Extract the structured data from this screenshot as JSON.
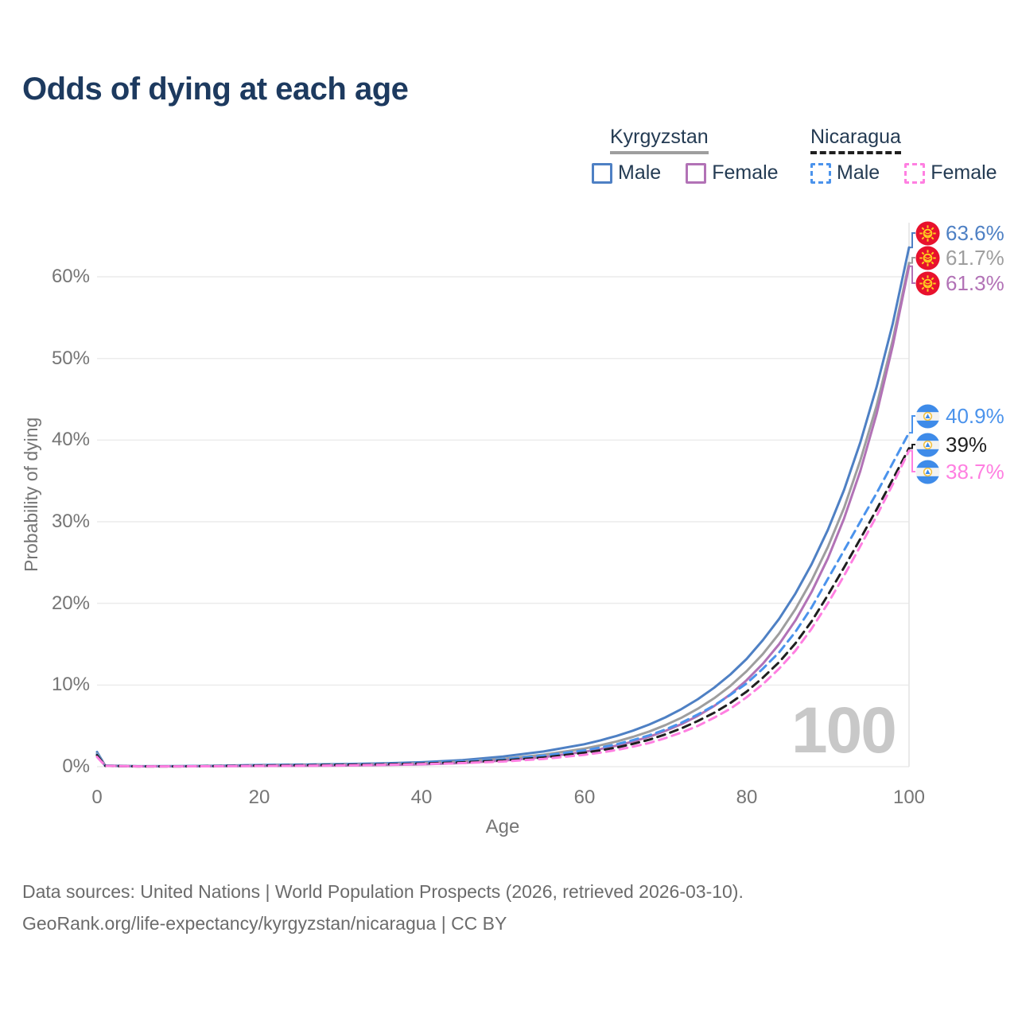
{
  "header": {
    "title": "Odds of dying at each age"
  },
  "legend": {
    "groups": [
      {
        "label": "Kyrgyzstan",
        "underline_style": "solid",
        "underline_color": "#9e9e9e",
        "items": [
          {
            "label": "Male",
            "color": "#4e80c4",
            "style": "solid"
          },
          {
            "label": "Female",
            "color": "#b272b6",
            "style": "solid"
          }
        ]
      },
      {
        "label": "Nicaragua",
        "underline_style": "dashed",
        "underline_color": "#1f1f1f",
        "items": [
          {
            "label": "Male",
            "color": "#4b93ec",
            "style": "dashed"
          },
          {
            "label": "Female",
            "color": "#ff7fe1",
            "style": "dashed"
          }
        ]
      }
    ]
  },
  "chart_data": {
    "type": "line",
    "title": "Odds of dying at each age",
    "xlabel": "Age",
    "ylabel": "Probability of dying",
    "xlim": [
      0,
      100
    ],
    "ylim_percent": [
      0,
      66
    ],
    "grid": "horizontal",
    "xticks": [
      0,
      20,
      40,
      60,
      80,
      100
    ],
    "ytick_values": [
      0,
      10,
      20,
      30,
      40,
      50,
      60
    ],
    "ytick_labels": [
      "0%",
      "10%",
      "20%",
      "30%",
      "40%",
      "50%",
      "60%"
    ],
    "age_marker_label": "100",
    "x": [
      0,
      1,
      5,
      10,
      15,
      20,
      25,
      30,
      35,
      40,
      45,
      50,
      55,
      60,
      62,
      64,
      66,
      68,
      70,
      72,
      74,
      76,
      78,
      80,
      82,
      84,
      86,
      88,
      90,
      92,
      94,
      96,
      98,
      100
    ],
    "series": [
      {
        "name": "Kyrgyzstan Male",
        "color": "#4e80c4",
        "style": "solid",
        "values": [
          1.8,
          0.15,
          0.06,
          0.07,
          0.12,
          0.2,
          0.25,
          0.31,
          0.4,
          0.55,
          0.8,
          1.25,
          1.86,
          2.75,
          3.22,
          3.77,
          4.41,
          5.16,
          6.04,
          7.07,
          8.27,
          9.67,
          11.3,
          13.2,
          15.5,
          18.1,
          21.2,
          24.8,
          29.0,
          33.9,
          39.7,
          46.5,
          54.3,
          63.6
        ]
      },
      {
        "name": "Kyrgyzstan Both sexes",
        "color": "#9e9e9e",
        "style": "solid",
        "values": [
          1.6,
          0.13,
          0.05,
          0.05,
          0.09,
          0.16,
          0.2,
          0.24,
          0.31,
          0.43,
          0.63,
          0.96,
          1.46,
          2.21,
          2.62,
          3.09,
          3.65,
          4.31,
          5.09,
          6.01,
          7.1,
          8.39,
          9.9,
          11.7,
          13.8,
          16.3,
          19.3,
          22.8,
          26.9,
          31.7,
          37.5,
          44.2,
          52.3,
          61.7
        ]
      },
      {
        "name": "Kyrgyzstan Female",
        "color": "#b272b6",
        "style": "solid",
        "values": [
          1.4,
          0.11,
          0.04,
          0.04,
          0.06,
          0.09,
          0.11,
          0.14,
          0.19,
          0.28,
          0.45,
          0.75,
          1.17,
          1.81,
          2.16,
          2.58,
          3.08,
          3.67,
          4.38,
          5.22,
          6.23,
          7.43,
          8.86,
          10.6,
          12.6,
          15.0,
          17.9,
          21.4,
          25.5,
          30.4,
          36.2,
          43.2,
          51.6,
          61.3
        ]
      },
      {
        "name": "Nicaragua Male",
        "color": "#4b93ec",
        "style": "dashed",
        "values": [
          1.5,
          0.12,
          0.05,
          0.05,
          0.1,
          0.19,
          0.23,
          0.28,
          0.36,
          0.48,
          0.65,
          0.9,
          1.35,
          2.0,
          2.35,
          2.75,
          3.25,
          3.85,
          4.55,
          5.4,
          6.4,
          7.5,
          8.8,
          10.2,
          12.0,
          14.0,
          16.5,
          19.5,
          23.0,
          26.5,
          30.0,
          33.5,
          37.2,
          40.9
        ]
      },
      {
        "name": "Nicaragua Both sexes",
        "color": "#1f1f1f",
        "style": "dashed",
        "values": [
          1.4,
          0.11,
          0.04,
          0.04,
          0.08,
          0.15,
          0.18,
          0.22,
          0.29,
          0.39,
          0.54,
          0.76,
          1.12,
          1.7,
          2.0,
          2.35,
          2.8,
          3.3,
          3.95,
          4.7,
          5.6,
          6.6,
          7.8,
          9.2,
          10.9,
          12.8,
          15.1,
          17.8,
          21.0,
          24.4,
          27.9,
          31.5,
          35.2,
          39.0
        ]
      },
      {
        "name": "Nicaragua Female",
        "color": "#ff7fe1",
        "style": "dashed",
        "values": [
          1.2,
          0.1,
          0.035,
          0.035,
          0.06,
          0.1,
          0.12,
          0.16,
          0.22,
          0.31,
          0.44,
          0.63,
          0.95,
          1.45,
          1.72,
          2.05,
          2.45,
          2.9,
          3.5,
          4.2,
          5.0,
          6.0,
          7.1,
          8.5,
          10.1,
          12.0,
          14.2,
          16.9,
          20.0,
          23.4,
          27.0,
          30.7,
          34.6,
          38.7
        ]
      }
    ]
  },
  "end_labels": [
    {
      "text": "63.6%",
      "value": 63.6,
      "flag": "kyrgyzstan",
      "color": "#4e80c4"
    },
    {
      "text": "61.7%",
      "value": 61.7,
      "flag": "kyrgyzstan",
      "color": "#9e9e9e"
    },
    {
      "text": "61.3%",
      "value": 61.3,
      "flag": "kyrgyzstan",
      "color": "#b272b6"
    },
    {
      "text": "40.9%",
      "value": 40.9,
      "flag": "nicaragua",
      "color": "#4b93ec"
    },
    {
      "text": "39%",
      "value": 39.0,
      "flag": "nicaragua",
      "color": "#1f1f1f"
    },
    {
      "text": "38.7%",
      "value": 38.7,
      "flag": "nicaragua",
      "color": "#ff7fe1"
    }
  ],
  "footer": {
    "line1": "Data sources: United Nations | World Population Prospects (2026, retrieved 2026-03-10).",
    "line2": "GeoRank.org/life-expectancy/kyrgyzstan/nicaragua | CC BY"
  }
}
